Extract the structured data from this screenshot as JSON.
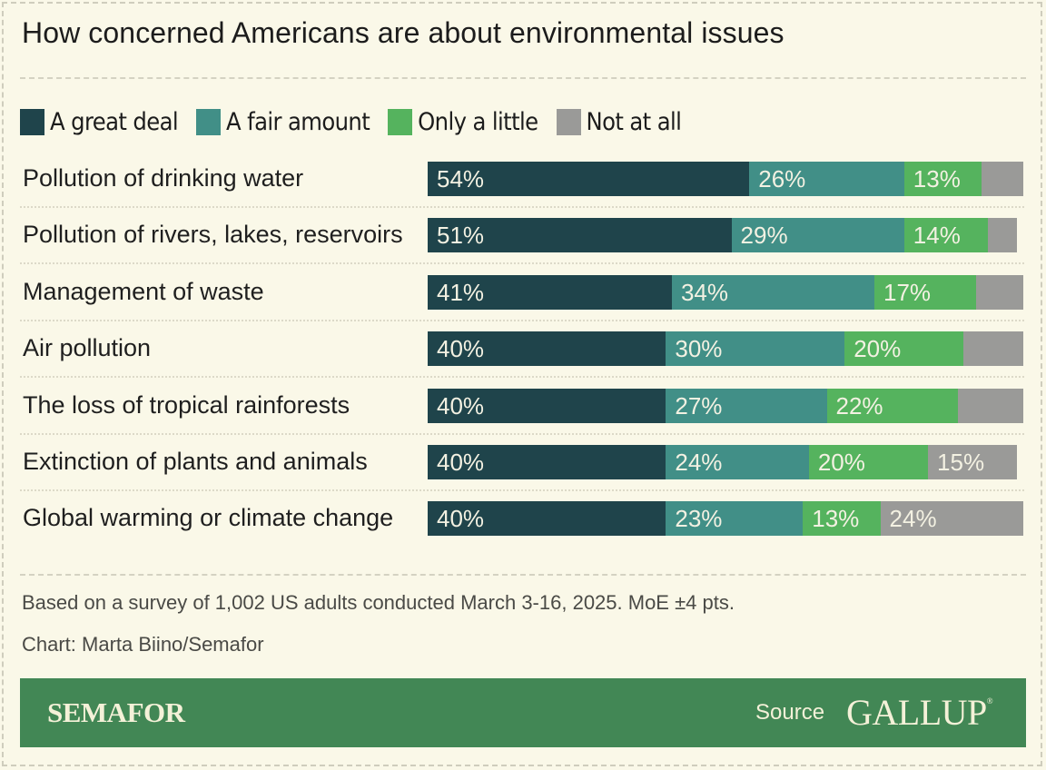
{
  "title": "How concerned Americans are about environmental issues",
  "colors": {
    "background": "#faf8e8",
    "great_deal": "#1f444b",
    "fair_amount": "#418f87",
    "only_little": "#55b35e",
    "not_at_all": "#9a9a98",
    "footer": "#428755"
  },
  "legend": [
    {
      "label": "A great deal",
      "color": "#1f444b"
    },
    {
      "label": "A fair amount",
      "color": "#418f87"
    },
    {
      "label": "Only a little",
      "color": "#55b35e"
    },
    {
      "label": "Not at all",
      "color": "#9a9a98"
    }
  ],
  "chart_data": {
    "type": "bar",
    "orientation": "horizontal",
    "stacked": true,
    "title": "How concerned Americans are about environmental issues",
    "xlabel": "",
    "ylabel": "",
    "xlim": [
      0,
      100
    ],
    "unit": "%",
    "legend_position": "top-left",
    "grid": false,
    "categories": [
      "Pollution of drinking water",
      "Pollution of rivers, lakes, reservoirs",
      "Management of waste",
      "Air pollution",
      "The loss of tropical rainforests",
      "Extinction of plants and animals",
      "Global warming or climate change"
    ],
    "series": [
      {
        "name": "A great deal",
        "values": [
          54,
          51,
          41,
          40,
          40,
          40,
          40
        ],
        "labeled": [
          true,
          true,
          true,
          true,
          true,
          true,
          true
        ]
      },
      {
        "name": "A fair amount",
        "values": [
          26,
          29,
          34,
          30,
          27,
          24,
          23
        ],
        "labeled": [
          true,
          true,
          true,
          true,
          true,
          true,
          true
        ]
      },
      {
        "name": "Only a little",
        "values": [
          13,
          14,
          17,
          20,
          22,
          20,
          13
        ],
        "labeled": [
          true,
          true,
          true,
          true,
          true,
          true,
          true
        ]
      },
      {
        "name": "Not at all",
        "values": [
          7,
          5,
          8,
          10,
          11,
          15,
          24
        ],
        "labeled": [
          false,
          false,
          false,
          false,
          false,
          true,
          true
        ]
      }
    ]
  },
  "notes": {
    "survey": "Based on a survey of 1,002 US adults conducted March 3-16, 2025. MoE ±4 pts.",
    "credit": "Chart: Marta Biino/Semafor"
  },
  "footer": {
    "brand": "SEMAFOR",
    "source_label": "Source",
    "source_name": "GALLUP",
    "registered_mark": "®"
  }
}
